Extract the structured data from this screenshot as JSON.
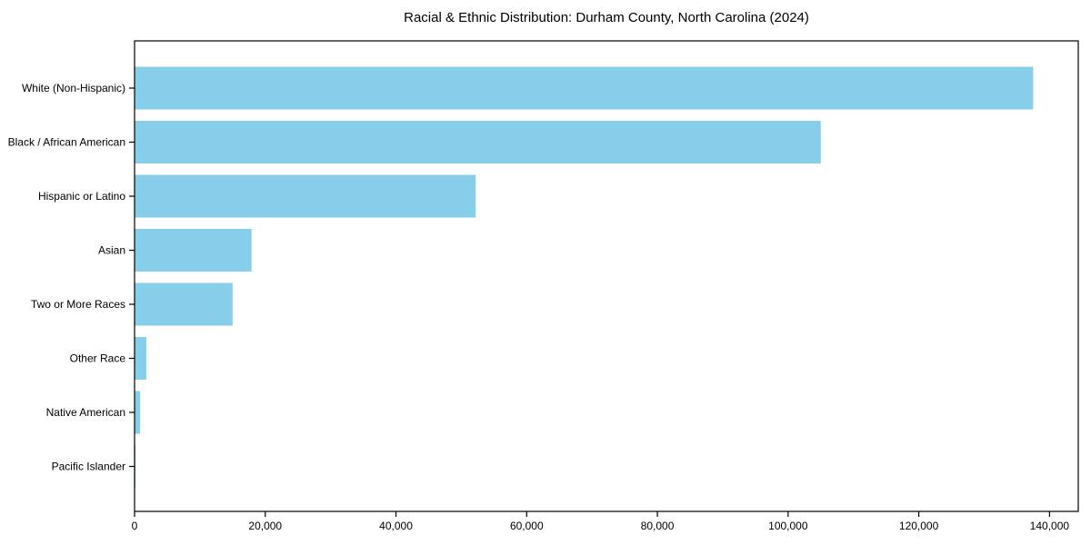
{
  "page": {
    "background_color": "#ffffff",
    "text_color": "#000000"
  },
  "chart_data": {
    "type": "bar",
    "orientation": "horizontal",
    "title": "Racial & Ethnic Distribution: Durham County, North Carolina (2024)",
    "xlabel": "",
    "ylabel": "",
    "categories": [
      "White (Non-Hispanic)",
      "Black / African American",
      "Hispanic or Latino",
      "Asian",
      "Two or More Races",
      "Other Race",
      "Native American",
      "Pacific Islander"
    ],
    "values": [
      137500,
      105000,
      52200,
      17900,
      15000,
      1800,
      850,
      150
    ],
    "bar_color": "#87CEEB",
    "axis_color": "#000000",
    "xlim": [
      0,
      144400
    ],
    "x_ticks": [
      0,
      20000,
      40000,
      60000,
      80000,
      100000,
      120000,
      140000
    ],
    "x_tick_labels": [
      "0",
      "20,000",
      "40,000",
      "60,000",
      "80,000",
      "100,000",
      "120,000",
      "140,000"
    ],
    "grid": false,
    "legend": "none"
  }
}
